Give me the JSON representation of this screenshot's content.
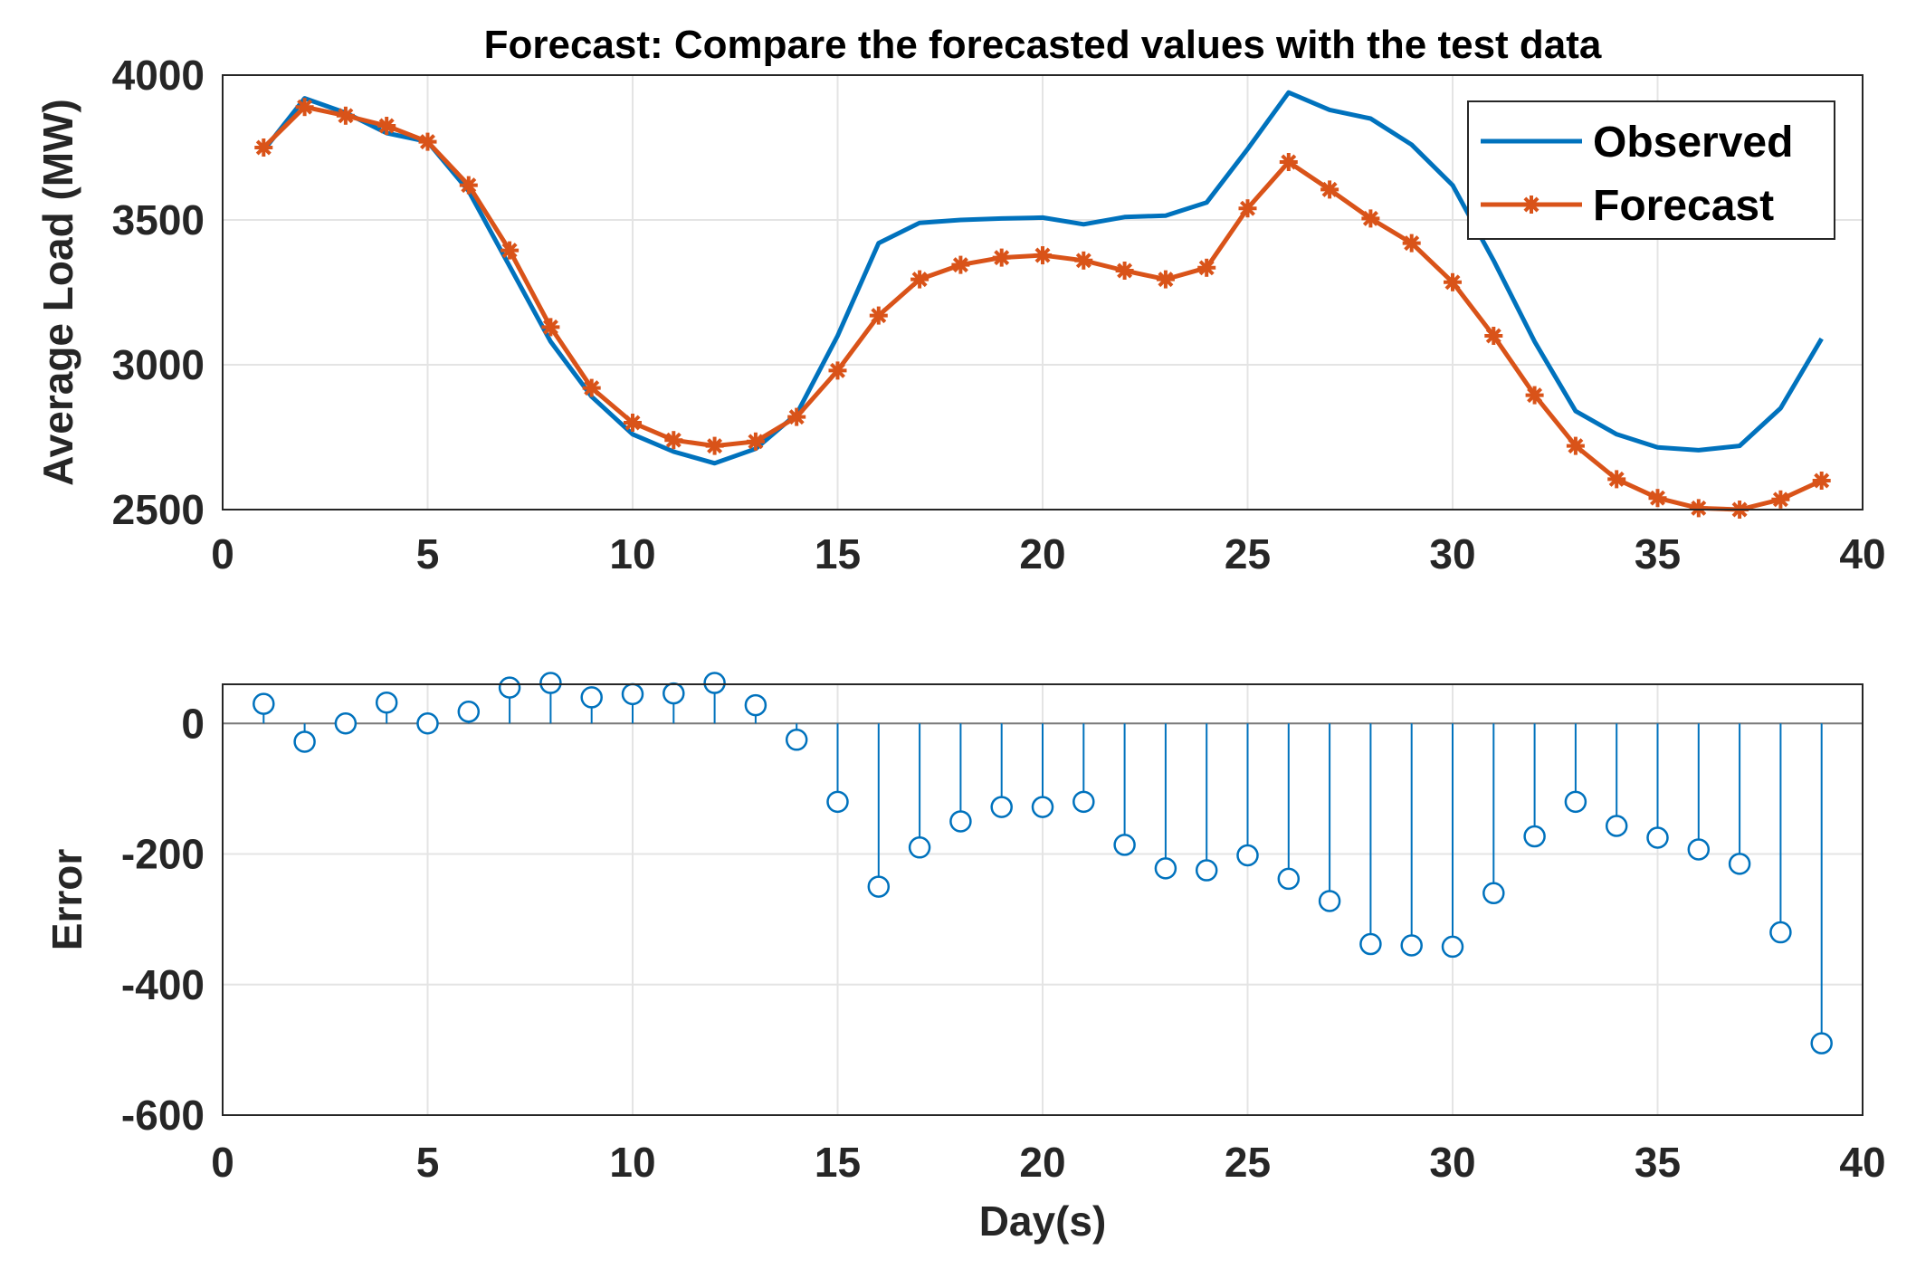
{
  "chart_data": [
    {
      "type": "line",
      "title": "Forecast: Compare the forecasted values with the test data",
      "xlabel": "",
      "ylabel": "Average Load (MW)",
      "xlim": [
        0,
        40
      ],
      "ylim": [
        2500,
        4000
      ],
      "xticks": [
        "0",
        "5",
        "10",
        "15",
        "20",
        "25",
        "30",
        "35",
        "40"
      ],
      "yticks": [
        "2500",
        "3000",
        "3500",
        "4000"
      ],
      "grid": true,
      "legend": "top-right",
      "x": [
        1,
        2,
        3,
        4,
        5,
        6,
        7,
        8,
        9,
        10,
        11,
        12,
        13,
        14,
        15,
        16,
        17,
        18,
        19,
        20,
        21,
        22,
        23,
        24,
        25,
        26,
        27,
        28,
        29,
        30,
        31,
        32,
        33,
        34,
        35,
        36,
        37,
        38,
        39
      ],
      "series": [
        {
          "name": "Observed",
          "color": "#0072BD",
          "marker": "none",
          "values": [
            3740,
            3920,
            3870,
            3800,
            3770,
            3600,
            3340,
            3080,
            2890,
            2760,
            2700,
            2660,
            2710,
            2830,
            3100,
            3420,
            3490,
            3500,
            3505,
            3508,
            3485,
            3510,
            3515,
            3560,
            3745,
            3940,
            3880,
            3850,
            3760,
            3620,
            3360,
            3080,
            2840,
            2760,
            2715,
            2705,
            2720,
            2850,
            3090
          ]
        },
        {
          "name": "Forecast",
          "color": "#D95319",
          "marker": "asterisk",
          "values": [
            3750,
            3890,
            3860,
            3825,
            3770,
            3620,
            3395,
            3130,
            2920,
            2800,
            2740,
            2720,
            2735,
            2820,
            2980,
            3170,
            3295,
            3345,
            3370,
            3378,
            3360,
            3325,
            3295,
            3335,
            3540,
            3700,
            3605,
            3505,
            3420,
            3285,
            3100,
            2895,
            2720,
            2605,
            2540,
            2505,
            2500,
            2535,
            2600
          ]
        }
      ]
    },
    {
      "type": "stem",
      "title": "",
      "xlabel": "Day(s)",
      "ylabel": "Error",
      "xlim": [
        0,
        40
      ],
      "ylim": [
        -600,
        60
      ],
      "xticks": [
        "0",
        "5",
        "10",
        "15",
        "20",
        "25",
        "30",
        "35",
        "40"
      ],
      "yticks": [
        "-600",
        "-400",
        "-200",
        "0"
      ],
      "grid": true,
      "color": "#0072BD",
      "marker": "circle",
      "x": [
        1,
        2,
        3,
        4,
        5,
        6,
        7,
        8,
        9,
        10,
        11,
        12,
        13,
        14,
        15,
        16,
        17,
        18,
        19,
        20,
        21,
        22,
        23,
        24,
        25,
        26,
        27,
        28,
        29,
        30,
        31,
        32,
        33,
        34,
        35,
        36,
        37,
        38,
        39
      ],
      "values": [
        30,
        -28,
        0,
        32,
        0,
        18,
        55,
        62,
        40,
        45,
        46,
        62,
        28,
        -25,
        -120,
        -250,
        -190,
        -150,
        -128,
        -128,
        -120,
        -186,
        -222,
        -225,
        -202,
        -238,
        -272,
        -338,
        -340,
        -342,
        -260,
        -173,
        -120,
        -157,
        -175,
        -193,
        -215,
        -320,
        -490
      ]
    }
  ]
}
